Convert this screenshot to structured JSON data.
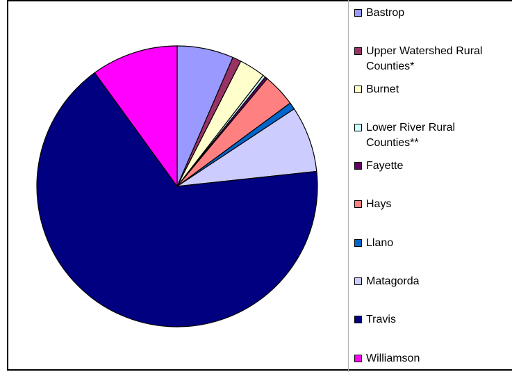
{
  "chart_data": {
    "type": "pie",
    "title": "",
    "legend_position": "right",
    "slices": [
      {
        "label": "Bastrop",
        "value": 6.5,
        "color": "#9999ff"
      },
      {
        "label": "Upper Watershed Rural Counties*",
        "value": 1.0,
        "color": "#993366"
      },
      {
        "label": "Burnet",
        "value": 3.0,
        "color": "#ffffcc"
      },
      {
        "label": "Lower River Rural Counties**",
        "value": 0.3,
        "color": "#ccffff"
      },
      {
        "label": "Fayette",
        "value": 0.3,
        "color": "#660066"
      },
      {
        "label": "Hays",
        "value": 3.8,
        "color": "#ff8080"
      },
      {
        "label": "Llano",
        "value": 0.8,
        "color": "#0066cc"
      },
      {
        "label": "Matagorda",
        "value": 7.6,
        "color": "#ccccff"
      },
      {
        "label": "Travis",
        "value": 66.7,
        "color": "#000080"
      },
      {
        "label": "Williamson",
        "value": 10.0,
        "color": "#ff00ff"
      }
    ]
  }
}
